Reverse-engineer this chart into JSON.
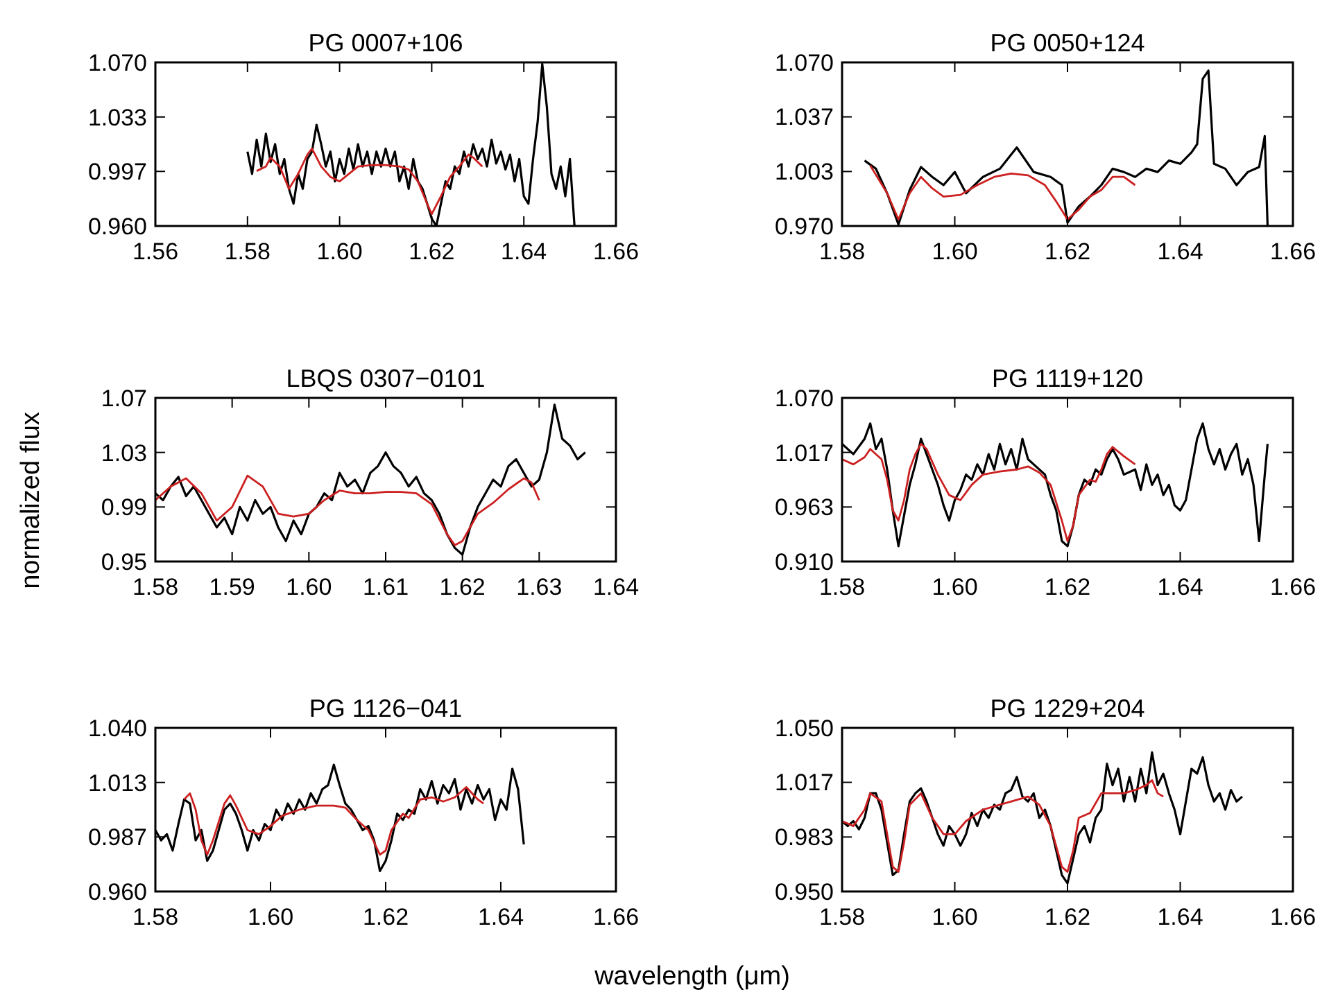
{
  "chart_data": [
    {
      "type": "line",
      "title": "PG 0007+106",
      "xlim": [
        1.56,
        1.66
      ],
      "xticks": [
        {
          "value": 1.56,
          "label": "1.56"
        },
        {
          "value": 1.58,
          "label": "1.58"
        },
        {
          "value": 1.6,
          "label": "1.60"
        },
        {
          "value": 1.62,
          "label": "1.62"
        },
        {
          "value": 1.64,
          "label": "1.64"
        },
        {
          "value": 1.66,
          "label": "1.66"
        }
      ],
      "ylim": [
        0.96,
        1.07
      ],
      "yticks": [
        {
          "value": 0.96,
          "label": "0.960"
        },
        {
          "value": 0.9967,
          "label": "0.997"
        },
        {
          "value": 1.0333,
          "label": "1.033"
        },
        {
          "value": 1.07,
          "label": "1.070"
        }
      ],
      "series": [
        {
          "color": "#000000",
          "x": [
            1.58,
            1.581,
            1.582,
            1.583,
            1.584,
            1.585,
            1.586,
            1.587,
            1.588,
            1.589,
            1.59,
            1.591,
            1.592,
            1.593,
            1.594,
            1.595,
            1.596,
            1.597,
            1.598,
            1.599,
            1.6,
            1.601,
            1.602,
            1.603,
            1.604,
            1.605,
            1.606,
            1.607,
            1.608,
            1.609,
            1.61,
            1.611,
            1.612,
            1.613,
            1.614,
            1.615,
            1.616,
            1.617,
            1.618,
            1.619,
            1.62,
            1.621,
            1.622,
            1.623,
            1.624,
            1.625,
            1.626,
            1.627,
            1.628,
            1.629,
            1.63,
            1.631,
            1.632,
            1.633,
            1.634,
            1.635,
            1.636,
            1.637,
            1.638,
            1.639,
            1.64,
            1.641,
            1.642,
            1.643,
            1.644,
            1.645,
            1.646,
            1.647,
            1.648,
            1.649,
            1.65,
            1.651
          ],
          "values": [
            1.01,
            0.995,
            1.018,
            1.0,
            1.022,
            1.003,
            1.015,
            0.995,
            1.005,
            0.985,
            0.975,
            0.995,
            0.985,
            1.005,
            1.01,
            1.028,
            1.015,
            1.0,
            1.01,
            0.99,
            1.005,
            0.995,
            1.012,
            0.998,
            1.015,
            1.0,
            1.01,
            0.995,
            1.01,
            1.0,
            1.012,
            1.0,
            1.01,
            0.99,
            1.0,
            0.985,
            1.005,
            0.99,
            0.985,
            0.975,
            0.965,
            0.96,
            0.975,
            0.99,
            0.985,
            1.0,
            0.995,
            1.01,
            1.0,
            1.015,
            1.005,
            1.012,
            1.0,
            1.018,
            1.002,
            1.01,
            0.998,
            1.008,
            0.99,
            1.005,
            0.98,
            0.975,
            1.005,
            1.03,
            1.069,
            1.04,
            0.995,
            0.985,
            1.0,
            0.98,
            1.005,
            0.96
          ]
        },
        {
          "color": "#cc2020",
          "x": [
            1.582,
            1.584,
            1.585,
            1.587,
            1.589,
            1.591,
            1.593,
            1.594,
            1.596,
            1.598,
            1.6,
            1.602,
            1.604,
            1.607,
            1.61,
            1.613,
            1.615,
            1.617,
            1.619,
            1.62,
            1.622,
            1.624,
            1.626,
            1.628,
            1.629,
            1.631
          ],
          "values": [
            0.997,
            1.0,
            1.006,
            1.0,
            0.985,
            0.995,
            1.008,
            1.012,
            1.0,
            0.993,
            0.99,
            0.995,
            1.0,
            1.001,
            1.001,
            1.0,
            0.998,
            0.99,
            0.975,
            0.968,
            0.98,
            0.993,
            1.0,
            1.008,
            1.006,
            1.0
          ]
        }
      ]
    },
    {
      "type": "line",
      "title": "PG 0050+124",
      "xlim": [
        1.58,
        1.66
      ],
      "xticks": [
        {
          "value": 1.58,
          "label": "1.58"
        },
        {
          "value": 1.6,
          "label": "1.60"
        },
        {
          "value": 1.62,
          "label": "1.62"
        },
        {
          "value": 1.64,
          "label": "1.64"
        },
        {
          "value": 1.66,
          "label": "1.66"
        }
      ],
      "ylim": [
        0.97,
        1.07
      ],
      "yticks": [
        {
          "value": 0.97,
          "label": "0.970"
        },
        {
          "value": 1.0033,
          "label": "1.003"
        },
        {
          "value": 1.0367,
          "label": "1.037"
        },
        {
          "value": 1.07,
          "label": "1.070"
        }
      ],
      "series": [
        {
          "color": "#000000",
          "x": [
            1.584,
            1.586,
            1.588,
            1.59,
            1.592,
            1.594,
            1.596,
            1.598,
            1.6,
            1.602,
            1.605,
            1.608,
            1.611,
            1.614,
            1.617,
            1.619,
            1.62,
            1.622,
            1.624,
            1.626,
            1.628,
            1.63,
            1.632,
            1.634,
            1.636,
            1.638,
            1.64,
            1.642,
            1.643,
            1.644,
            1.645,
            1.646,
            1.648,
            1.65,
            1.652,
            1.654,
            1.655,
            1.6555
          ],
          "values": [
            1.01,
            1.005,
            0.99,
            0.971,
            0.992,
            1.006,
            1.0,
            0.995,
            1.003,
            0.99,
            1.0,
            1.005,
            1.018,
            1.003,
            1.0,
            0.995,
            0.972,
            0.982,
            0.988,
            0.995,
            1.005,
            1.003,
            1.0,
            1.005,
            1.003,
            1.01,
            1.008,
            1.015,
            1.02,
            1.06,
            1.065,
            1.008,
            1.005,
            0.995,
            1.003,
            1.006,
            1.025,
            0.97
          ]
        },
        {
          "color": "#cc2020",
          "x": [
            1.585,
            1.588,
            1.59,
            1.592,
            1.594,
            1.596,
            1.598,
            1.601,
            1.604,
            1.607,
            1.61,
            1.613,
            1.616,
            1.618,
            1.62,
            1.622,
            1.624,
            1.626,
            1.628,
            1.63,
            1.632
          ],
          "values": [
            1.007,
            0.99,
            0.974,
            0.99,
            1.0,
            0.993,
            0.988,
            0.989,
            0.995,
            1.0,
            1.002,
            1.001,
            0.995,
            0.985,
            0.974,
            0.98,
            0.988,
            0.992,
            1.0,
            1.0,
            0.995
          ]
        }
      ]
    },
    {
      "type": "line",
      "title": "LBQS 0307−0101",
      "ylabel": "normalized flux",
      "xlim": [
        1.58,
        1.64
      ],
      "xticks": [
        {
          "value": 1.58,
          "label": "1.58"
        },
        {
          "value": 1.59,
          "label": "1.59"
        },
        {
          "value": 1.6,
          "label": "1.60"
        },
        {
          "value": 1.61,
          "label": "1.61"
        },
        {
          "value": 1.62,
          "label": "1.62"
        },
        {
          "value": 1.63,
          "label": "1.63"
        },
        {
          "value": 1.64,
          "label": "1.64"
        }
      ],
      "ylim": [
        0.95,
        1.07
      ],
      "yticks": [
        {
          "value": 0.95,
          "label": "0.95"
        },
        {
          "value": 0.99,
          "label": "0.99"
        },
        {
          "value": 1.03,
          "label": "1.03"
        },
        {
          "value": 1.07,
          "label": "1.07"
        }
      ],
      "series": [
        {
          "color": "#000000",
          "x": [
            1.58,
            1.581,
            1.582,
            1.583,
            1.584,
            1.585,
            1.586,
            1.587,
            1.588,
            1.589,
            1.59,
            1.591,
            1.592,
            1.593,
            1.594,
            1.595,
            1.596,
            1.597,
            1.598,
            1.599,
            1.6,
            1.601,
            1.602,
            1.603,
            1.604,
            1.605,
            1.606,
            1.607,
            1.608,
            1.609,
            1.61,
            1.611,
            1.612,
            1.613,
            1.614,
            1.615,
            1.616,
            1.617,
            1.618,
            1.619,
            1.62,
            1.621,
            1.622,
            1.623,
            1.624,
            1.625,
            1.626,
            1.627,
            1.628,
            1.629,
            1.63,
            1.631,
            1.632,
            1.633,
            1.634,
            1.635,
            1.636
          ],
          "values": [
            1.0,
            0.995,
            1.005,
            1.012,
            0.998,
            1.005,
            0.995,
            0.985,
            0.975,
            0.982,
            0.97,
            0.99,
            0.98,
            0.995,
            0.985,
            0.99,
            0.975,
            0.965,
            0.98,
            0.97,
            0.985,
            0.99,
            1.0,
            0.995,
            1.015,
            1.005,
            1.01,
            1.0,
            1.015,
            1.02,
            1.03,
            1.02,
            1.015,
            1.005,
            1.012,
            1.0,
            0.995,
            0.985,
            0.97,
            0.96,
            0.955,
            0.975,
            0.99,
            1.0,
            1.01,
            1.005,
            1.02,
            1.025,
            1.015,
            1.005,
            1.01,
            1.03,
            1.065,
            1.04,
            1.035,
            1.025,
            1.03
          ]
        },
        {
          "color": "#cc2020",
          "x": [
            1.58,
            1.582,
            1.584,
            1.586,
            1.588,
            1.59,
            1.592,
            1.594,
            1.596,
            1.598,
            1.6,
            1.602,
            1.604,
            1.606,
            1.608,
            1.61,
            1.612,
            1.614,
            1.616,
            1.618,
            1.619,
            1.62,
            1.622,
            1.624,
            1.626,
            1.628,
            1.629,
            1.63
          ],
          "values": [
            0.995,
            1.005,
            1.011,
            1.0,
            0.98,
            0.99,
            1.013,
            1.005,
            0.985,
            0.983,
            0.985,
            0.995,
            1.002,
            1.0,
            1.0,
            1.001,
            1.001,
            1.0,
            0.992,
            0.97,
            0.962,
            0.965,
            0.985,
            0.993,
            1.003,
            1.011,
            1.008,
            0.995
          ]
        }
      ]
    },
    {
      "type": "line",
      "title": "PG 1119+120",
      "xlim": [
        1.58,
        1.66
      ],
      "xticks": [
        {
          "value": 1.58,
          "label": "1.58"
        },
        {
          "value": 1.6,
          "label": "1.60"
        },
        {
          "value": 1.62,
          "label": "1.62"
        },
        {
          "value": 1.64,
          "label": "1.64"
        },
        {
          "value": 1.66,
          "label": "1.66"
        }
      ],
      "ylim": [
        0.91,
        1.07
      ],
      "yticks": [
        {
          "value": 0.91,
          "label": "0.910"
        },
        {
          "value": 0.9633,
          "label": "0.963"
        },
        {
          "value": 1.0167,
          "label": "1.017"
        },
        {
          "value": 1.07,
          "label": "1.070"
        }
      ],
      "series": [
        {
          "color": "#000000",
          "x": [
            1.58,
            1.582,
            1.584,
            1.585,
            1.586,
            1.587,
            1.588,
            1.589,
            1.59,
            1.591,
            1.592,
            1.593,
            1.594,
            1.595,
            1.596,
            1.597,
            1.598,
            1.599,
            1.6,
            1.601,
            1.602,
            1.603,
            1.604,
            1.605,
            1.606,
            1.607,
            1.608,
            1.609,
            1.61,
            1.611,
            1.612,
            1.613,
            1.614,
            1.616,
            1.617,
            1.618,
            1.619,
            1.62,
            1.621,
            1.622,
            1.623,
            1.624,
            1.625,
            1.626,
            1.627,
            1.628,
            1.629,
            1.63,
            1.632,
            1.633,
            1.634,
            1.635,
            1.636,
            1.637,
            1.638,
            1.639,
            1.64,
            1.641,
            1.642,
            1.643,
            1.644,
            1.645,
            1.646,
            1.647,
            1.648,
            1.649,
            1.65,
            1.651,
            1.652,
            1.653,
            1.654,
            1.655,
            1.6555
          ],
          "values": [
            1.025,
            1.015,
            1.03,
            1.045,
            1.02,
            1.03,
            1.0,
            0.96,
            0.925,
            0.955,
            0.985,
            1.005,
            1.03,
            1.015,
            1.0,
            0.985,
            0.965,
            0.95,
            0.97,
            0.98,
            0.995,
            0.99,
            1.005,
            0.995,
            1.015,
            1.0,
            1.025,
            1.005,
            1.02,
            1.0,
            1.03,
            1.01,
            1.005,
            0.995,
            0.975,
            0.96,
            0.93,
            0.925,
            0.945,
            0.975,
            0.99,
            0.985,
            1.0,
            0.995,
            1.01,
            1.02,
            1.01,
            0.995,
            1.0,
            0.98,
            1.005,
            0.985,
            0.995,
            0.975,
            0.985,
            0.965,
            0.96,
            0.97,
            1.0,
            1.03,
            1.045,
            1.02,
            1.005,
            1.02,
            1.0,
            1.015,
            1.025,
            0.995,
            1.01,
            0.985,
            0.93,
            0.995,
            1.025
          ]
        },
        {
          "color": "#cc2020",
          "x": [
            1.58,
            1.582,
            1.584,
            1.585,
            1.587,
            1.588,
            1.589,
            1.59,
            1.591,
            1.592,
            1.593,
            1.594,
            1.595,
            1.597,
            1.599,
            1.601,
            1.603,
            1.605,
            1.608,
            1.611,
            1.613,
            1.615,
            1.617,
            1.619,
            1.62,
            1.621,
            1.622,
            1.624,
            1.625,
            1.626,
            1.627,
            1.628,
            1.63,
            1.632
          ],
          "values": [
            1.01,
            1.005,
            1.012,
            1.02,
            1.01,
            0.99,
            0.96,
            0.95,
            0.97,
            1.0,
            1.015,
            1.025,
            1.02,
            0.995,
            0.975,
            0.97,
            0.985,
            0.995,
            0.998,
            1.0,
            1.003,
            0.997,
            0.985,
            0.95,
            0.93,
            0.945,
            0.975,
            0.99,
            0.988,
            1.0,
            1.015,
            1.022,
            1.013,
            1.005
          ]
        }
      ]
    },
    {
      "type": "line",
      "title": "PG 1126−041",
      "xlabel": "wavelength (μm)",
      "xlim": [
        1.58,
        1.66
      ],
      "xticks": [
        {
          "value": 1.58,
          "label": "1.58"
        },
        {
          "value": 1.6,
          "label": "1.60"
        },
        {
          "value": 1.62,
          "label": "1.62"
        },
        {
          "value": 1.64,
          "label": "1.64"
        },
        {
          "value": 1.66,
          "label": "1.66"
        }
      ],
      "ylim": [
        0.96,
        1.04
      ],
      "yticks": [
        {
          "value": 0.96,
          "label": "0.960"
        },
        {
          "value": 0.9867,
          "label": "0.987"
        },
        {
          "value": 1.0133,
          "label": "1.013"
        },
        {
          "value": 1.04,
          "label": "1.040"
        }
      ],
      "series": [
        {
          "color": "#000000",
          "x": [
            1.58,
            1.581,
            1.582,
            1.583,
            1.584,
            1.585,
            1.586,
            1.587,
            1.588,
            1.589,
            1.59,
            1.591,
            1.592,
            1.593,
            1.594,
            1.595,
            1.596,
            1.597,
            1.598,
            1.599,
            1.6,
            1.601,
            1.602,
            1.603,
            1.604,
            1.605,
            1.606,
            1.607,
            1.608,
            1.609,
            1.61,
            1.611,
            1.612,
            1.613,
            1.614,
            1.615,
            1.616,
            1.617,
            1.618,
            1.619,
            1.62,
            1.621,
            1.622,
            1.623,
            1.624,
            1.625,
            1.626,
            1.627,
            1.628,
            1.629,
            1.63,
            1.631,
            1.632,
            1.633,
            1.634,
            1.635,
            1.636,
            1.637,
            1.638,
            1.639,
            1.64,
            1.641,
            1.642,
            1.643,
            1.644
          ],
          "values": [
            0.99,
            0.985,
            0.988,
            0.98,
            0.993,
            1.005,
            1.003,
            0.985,
            0.99,
            0.975,
            0.98,
            0.99,
            1.0,
            1.003,
            0.998,
            0.99,
            0.98,
            0.99,
            0.985,
            0.993,
            0.99,
            1.0,
            0.995,
            1.003,
            0.998,
            1.005,
            1.0,
            1.008,
            1.003,
            1.01,
            1.012,
            1.022,
            1.012,
            1.003,
            1.0,
            0.995,
            0.99,
            0.992,
            0.985,
            0.97,
            0.975,
            0.985,
            0.998,
            0.995,
            1.0,
            0.998,
            1.01,
            1.005,
            1.014,
            1.003,
            1.012,
            1.008,
            1.015,
            1.0,
            1.01,
            1.003,
            1.012,
            1.005,
            1.01,
            0.995,
            1.005,
            1.0,
            1.02,
            1.01,
            0.983
          ]
        },
        {
          "color": "#cc2020",
          "x": [
            1.585,
            1.586,
            1.587,
            1.588,
            1.589,
            1.59,
            1.592,
            1.593,
            1.594,
            1.596,
            1.598,
            1.6,
            1.602,
            1.605,
            1.608,
            1.611,
            1.613,
            1.615,
            1.617,
            1.619,
            1.62,
            1.621,
            1.623,
            1.624,
            1.626,
            1.628,
            1.63,
            1.632,
            1.634,
            1.636,
            1.637
          ],
          "values": [
            1.005,
            1.008,
            1.0,
            0.985,
            0.978,
            0.985,
            1.003,
            1.007,
            1.002,
            0.99,
            0.988,
            0.992,
            0.997,
            1.0,
            1.002,
            1.002,
            1.001,
            0.995,
            0.99,
            0.978,
            0.98,
            0.99,
            0.998,
            0.996,
            1.005,
            1.006,
            1.004,
            1.006,
            1.011,
            1.005,
            1.003
          ]
        }
      ]
    },
    {
      "type": "line",
      "title": "PG 1229+204",
      "xlim": [
        1.58,
        1.66
      ],
      "xticks": [
        {
          "value": 1.58,
          "label": "1.58"
        },
        {
          "value": 1.6,
          "label": "1.60"
        },
        {
          "value": 1.62,
          "label": "1.62"
        },
        {
          "value": 1.64,
          "label": "1.64"
        },
        {
          "value": 1.66,
          "label": "1.66"
        }
      ],
      "ylim": [
        0.95,
        1.05
      ],
      "yticks": [
        {
          "value": 0.95,
          "label": "0.950"
        },
        {
          "value": 0.9833,
          "label": "0.983"
        },
        {
          "value": 1.0167,
          "label": "1.017"
        },
        {
          "value": 1.05,
          "label": "1.050"
        }
      ],
      "series": [
        {
          "color": "#000000",
          "x": [
            1.58,
            1.581,
            1.582,
            1.583,
            1.584,
            1.585,
            1.586,
            1.587,
            1.588,
            1.589,
            1.59,
            1.591,
            1.592,
            1.593,
            1.594,
            1.595,
            1.596,
            1.597,
            1.598,
            1.599,
            1.6,
            1.601,
            1.602,
            1.603,
            1.604,
            1.605,
            1.606,
            1.607,
            1.608,
            1.609,
            1.61,
            1.611,
            1.612,
            1.613,
            1.614,
            1.615,
            1.616,
            1.617,
            1.618,
            1.619,
            1.62,
            1.621,
            1.622,
            1.623,
            1.624,
            1.625,
            1.626,
            1.627,
            1.628,
            1.629,
            1.63,
            1.631,
            1.632,
            1.633,
            1.634,
            1.635,
            1.636,
            1.637,
            1.638,
            1.639,
            1.64,
            1.641,
            1.642,
            1.643,
            1.644,
            1.645,
            1.646,
            1.647,
            1.648,
            1.649,
            1.65,
            1.651
          ],
          "values": [
            0.993,
            0.99,
            0.993,
            0.988,
            0.995,
            1.01,
            1.01,
            1.0,
            0.98,
            0.96,
            0.963,
            0.985,
            1.005,
            1.01,
            1.013,
            1.005,
            0.995,
            0.985,
            0.978,
            0.99,
            0.985,
            0.978,
            0.985,
            0.998,
            0.99,
            1.0,
            0.995,
            1.003,
            1.0,
            1.01,
            1.012,
            1.02,
            1.008,
            1.005,
            1.01,
            0.995,
            1.0,
            0.99,
            0.975,
            0.96,
            0.955,
            0.97,
            0.985,
            0.99,
            0.98,
            0.995,
            1.0,
            1.028,
            1.015,
            1.025,
            1.005,
            1.02,
            1.005,
            1.025,
            1.01,
            1.035,
            1.015,
            1.022,
            1.01,
            1.0,
            0.985,
            1.005,
            1.025,
            1.022,
            1.032,
            1.015,
            1.005,
            1.01,
            1.0,
            1.012,
            1.005,
            1.008
          ]
        },
        {
          "color": "#cc2020",
          "x": [
            1.58,
            1.582,
            1.584,
            1.585,
            1.587,
            1.588,
            1.589,
            1.59,
            1.591,
            1.592,
            1.594,
            1.596,
            1.598,
            1.6,
            1.602,
            1.605,
            1.608,
            1.611,
            1.613,
            1.615,
            1.617,
            1.619,
            1.62,
            1.621,
            1.622,
            1.624,
            1.626,
            1.628,
            1.63,
            1.632,
            1.634,
            1.635,
            1.636,
            1.637
          ],
          "values": [
            0.993,
            0.99,
            1.0,
            1.01,
            1.005,
            0.985,
            0.965,
            0.962,
            0.98,
            1.003,
            1.01,
            0.995,
            0.985,
            0.985,
            0.993,
            1.0,
            1.003,
            1.006,
            1.008,
            1.003,
            0.99,
            0.965,
            0.962,
            0.975,
            0.995,
            0.998,
            1.01,
            1.01,
            1.01,
            1.012,
            1.015,
            1.018,
            1.01,
            1.008
          ]
        }
      ]
    }
  ]
}
